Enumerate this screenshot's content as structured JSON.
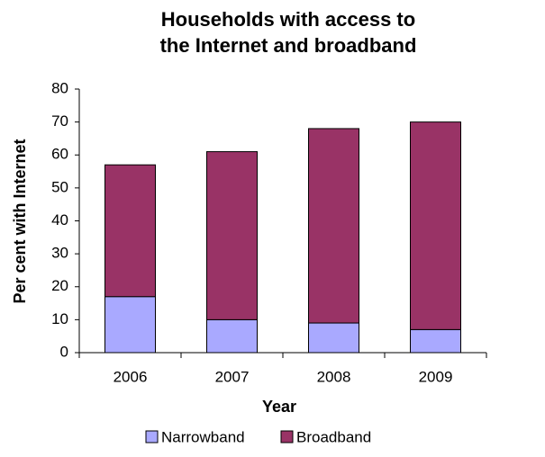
{
  "chart_data": {
    "type": "stacked_bar",
    "title": [
      "Households with access to",
      "the Internet and broadband"
    ],
    "x_label": "Year",
    "y_label": "Per cent with Internet",
    "categories": [
      "2006",
      "2007",
      "2008",
      "2009"
    ],
    "series": [
      {
        "name": "Narrowband",
        "color": "#a9a9ff",
        "values": [
          17,
          10,
          9,
          7
        ]
      },
      {
        "name": "Broadband",
        "color": "#993366",
        "values": [
          40,
          51,
          59,
          63
        ]
      }
    ],
    "ylim": [
      0,
      80
    ],
    "yticks": [
      0,
      10,
      20,
      30,
      40,
      50,
      60,
      70,
      80
    ],
    "grid": false,
    "legend": "bottom"
  }
}
